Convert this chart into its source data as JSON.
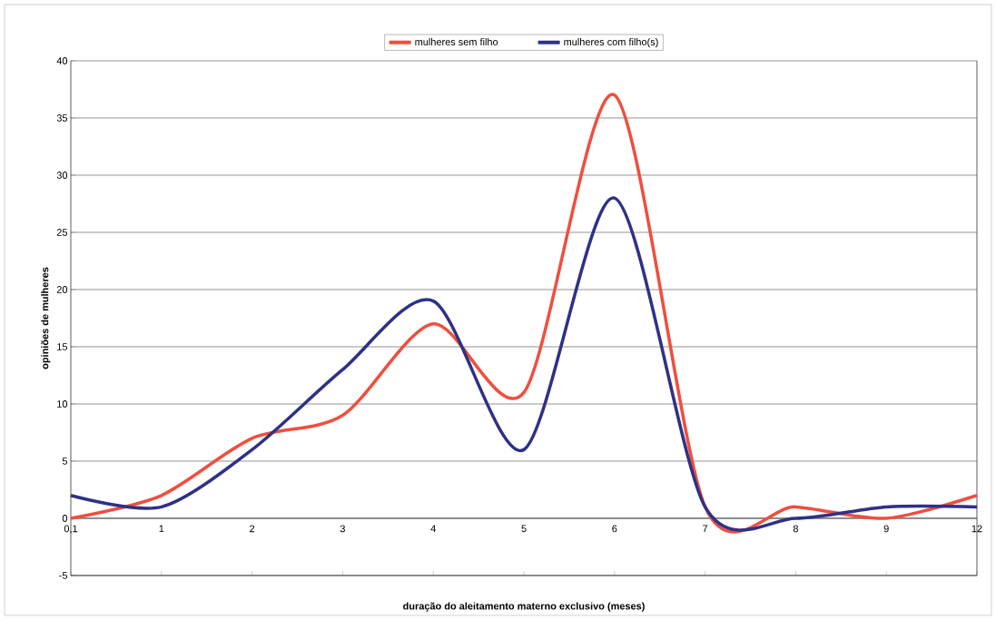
{
  "chart_data": {
    "type": "line",
    "xlabel": "duração do aleitamento materno exclusivo (meses)",
    "ylabel": "opiniões de mulheres",
    "categories": [
      "0,1",
      "1",
      "2",
      "3",
      "4",
      "5",
      "6",
      "7",
      "8",
      "9",
      "12"
    ],
    "series": [
      {
        "name": "mulheres sem filho",
        "color": "#f04e3e",
        "values": [
          0,
          2,
          7,
          9,
          17,
          11,
          37,
          1,
          1,
          0,
          2
        ]
      },
      {
        "name": "mulheres com filho(s)",
        "color": "#2e3185",
        "values": [
          2,
          1,
          6,
          13,
          19,
          6,
          28,
          1,
          0,
          1,
          1
        ]
      }
    ],
    "ylim": [
      -5,
      40
    ],
    "yticks": [
      -5,
      0,
      5,
      10,
      15,
      20,
      25,
      30,
      35,
      40
    ],
    "grid": "y",
    "legend": "top",
    "marker": "none",
    "line_style": "solid"
  }
}
